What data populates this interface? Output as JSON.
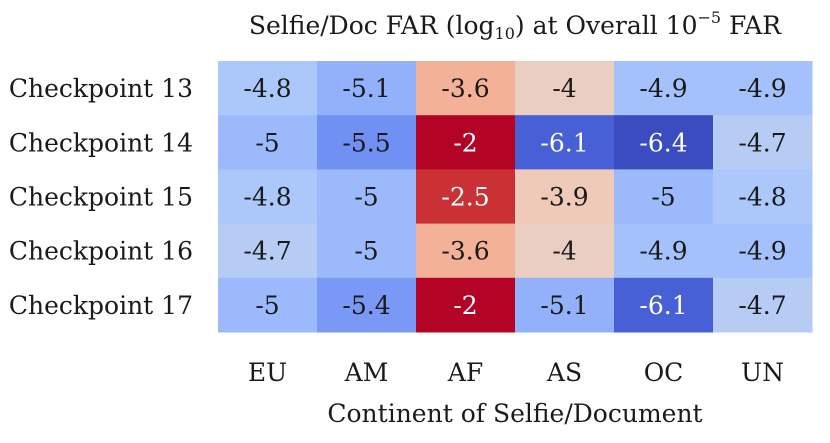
{
  "chart_data": {
    "type": "heatmap",
    "title": {
      "prefix": "Selfie/Doc FAR (log",
      "sub": "10",
      "middle": ") at Overall 10",
      "sup": "−5",
      "suffix": " FAR"
    },
    "xlabel": "Continent of Selfie/Document",
    "ylabel": "",
    "columns": [
      "EU",
      "AM",
      "AF",
      "AS",
      "OC",
      "UN"
    ],
    "rows": [
      "Checkpoint 13",
      "Checkpoint 14",
      "Checkpoint 15",
      "Checkpoint 16",
      "Checkpoint 17"
    ],
    "values": [
      [
        -4.8,
        -5.1,
        -3.6,
        -4,
        -4.9,
        -4.9
      ],
      [
        -5,
        -5.5,
        -2,
        -6.1,
        -6.4,
        -4.7
      ],
      [
        -4.8,
        -5,
        -2.5,
        -3.9,
        -5,
        -4.8
      ],
      [
        -4.7,
        -5,
        -3.6,
        -4,
        -4.9,
        -4.9
      ],
      [
        -5,
        -5.4,
        -2,
        -5.1,
        -6.1,
        -4.7
      ]
    ],
    "colormap": "coolwarm",
    "vmin": -6.4,
    "vmax": -2.2,
    "colorbar": false
  }
}
